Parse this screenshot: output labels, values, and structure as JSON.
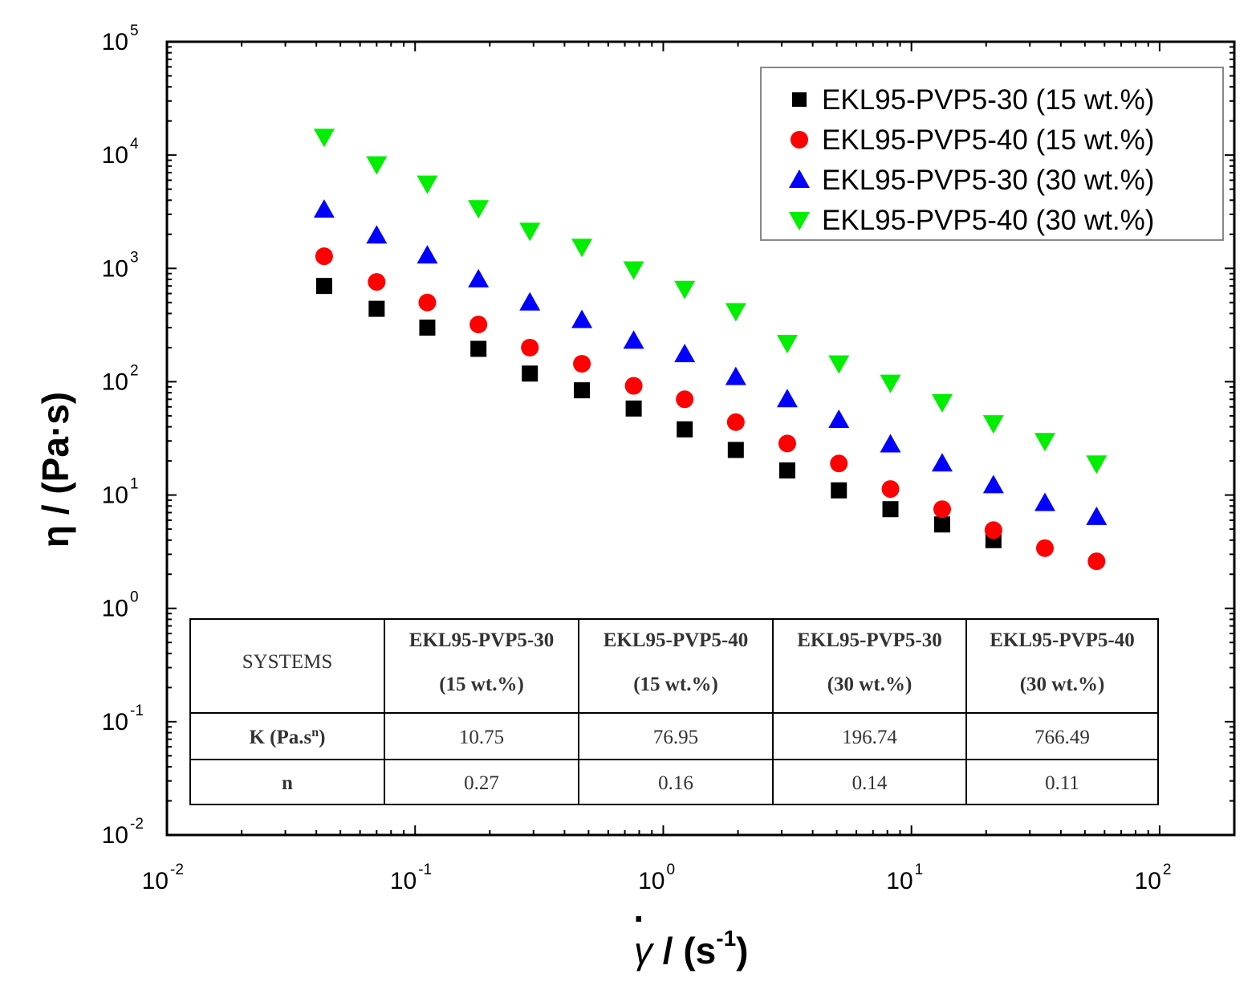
{
  "chart_data": {
    "type": "scatter",
    "x_scale": "log",
    "y_scale": "log",
    "xlim": [
      0.01,
      200
    ],
    "ylim": [
      0.01,
      100000
    ],
    "x_ticks": [
      {
        "value": 0.01,
        "base": "10",
        "exp": "-2"
      },
      {
        "value": 0.1,
        "base": "10",
        "exp": "-1"
      },
      {
        "value": 1,
        "base": "10",
        "exp": "0"
      },
      {
        "value": 10,
        "base": "10",
        "exp": "1"
      },
      {
        "value": 100,
        "base": "10",
        "exp": "2"
      }
    ],
    "y_ticks": [
      {
        "value": 0.01,
        "base": "10",
        "exp": "-2"
      },
      {
        "value": 0.1,
        "base": "10",
        "exp": "-1"
      },
      {
        "value": 1,
        "base": "10",
        "exp": "0"
      },
      {
        "value": 10,
        "base": "10",
        "exp": "1"
      },
      {
        "value": 100,
        "base": "10",
        "exp": "2"
      },
      {
        "value": 1000,
        "base": "10",
        "exp": "3"
      },
      {
        "value": 10000,
        "base": "10",
        "exp": "4"
      },
      {
        "value": 100000,
        "base": "10",
        "exp": "5"
      }
    ],
    "xlabel": {
      "symbol": "γ",
      "dot": "·",
      "sep": "/",
      "open": "(s",
      "exp": "-1",
      "close": ")"
    },
    "ylabel": "η / (Pa·s)",
    "legend_position": "top-right",
    "x": [
      0.043,
      0.07,
      0.112,
      0.18,
      0.29,
      0.47,
      0.76,
      1.22,
      1.96,
      3.16,
      5.1,
      8.23,
      13.3,
      21.4,
      34.5,
      55.7
    ],
    "series": [
      {
        "name": "EKL95-PVP5-30 (15 wt.%)",
        "marker": "square",
        "color": "#000000",
        "values": [
          700,
          440,
          300,
          195,
          118,
          84,
          58,
          38,
          25,
          16.5,
          11,
          7.5,
          5.5,
          4.0,
          null,
          null
        ]
      },
      {
        "name": "EKL95-PVP5-40 (15 wt.%)",
        "marker": "circle",
        "color": "#ff0000",
        "values": [
          1280,
          760,
          500,
          320,
          200,
          144,
          92,
          70,
          44,
          28.5,
          19,
          11.3,
          7.5,
          4.9,
          3.4,
          2.6
        ]
      },
      {
        "name": "EKL95-PVP5-30 (30 wt.%)",
        "marker": "triangle-up",
        "color": "#0000ff",
        "values": [
          3300,
          1950,
          1300,
          800,
          500,
          350,
          230,
          175,
          110,
          70,
          46,
          28,
          19,
          12.2,
          8.5,
          6.4
        ]
      },
      {
        "name": "EKL95-PVP5-40 (30 wt.%)",
        "marker": "triangle-down",
        "color": "#00ee00",
        "values": [
          14500,
          8300,
          5600,
          3400,
          2150,
          1550,
          980,
          660,
          420,
          220,
          145,
          98,
          66,
          43,
          30,
          19
        ]
      }
    ],
    "table": {
      "header_label": "SYSTEMS",
      "columns": [
        {
          "line1": "EKL95-PVP5-30",
          "line2": "(15 wt.%)"
        },
        {
          "line1": "EKL95-PVP5-40",
          "line2": "(15 wt.%)"
        },
        {
          "line1": "EKL95-PVP5-30",
          "line2": "(30 wt.%)"
        },
        {
          "line1": "EKL95-PVP5-40",
          "line2": "(30 wt.%)"
        }
      ],
      "rows": [
        {
          "label": "K (Pa.s",
          "label_sup": "n",
          "label_close": ")",
          "values": [
            "10.75",
            "76.95",
            "196.74",
            "766.49"
          ]
        },
        {
          "label": "n",
          "label_sup": "",
          "label_close": "",
          "values": [
            "0.27",
            "0.16",
            "0.14",
            "0.11"
          ]
        }
      ]
    }
  }
}
